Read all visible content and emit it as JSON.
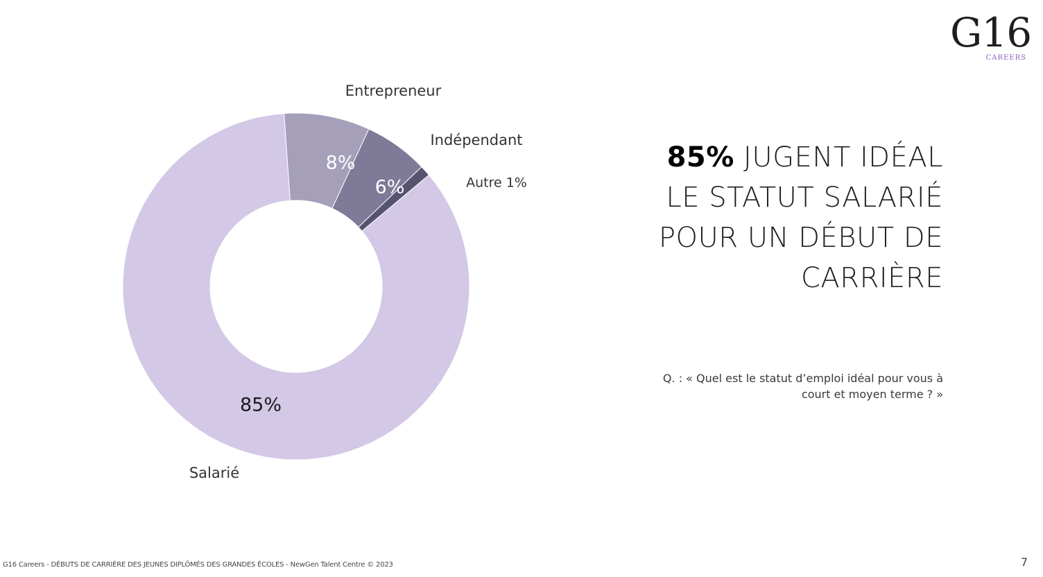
{
  "logo": {
    "main": "G16",
    "sub": "CAREERS"
  },
  "headline": {
    "bold_part": "85%",
    "line1_rest": " JUGENT IDÉAL",
    "line2": "LE STATUT SALARIÉ",
    "line3": "POUR UN DÉBUT DE",
    "line4": "CARRIÈRE"
  },
  "question": {
    "line1": "Q. : « Quel est le statut d’emploi idéal pour vous à",
    "line2": "court et moyen terme ? »"
  },
  "footer": {
    "text": "G16 Careers - DÉBUTS DE CARRIÈRE DES JEUNES DIPLÔMÉS DES GRANDES ÉCOLES - NewGen Talent Centre © 2023"
  },
  "page_number": "7",
  "chart_data": {
    "type": "pie",
    "donut": true,
    "slices": [
      {
        "label": "Salarié",
        "value": 85,
        "value_label": "85%",
        "color": "#d3c8e6",
        "text_color": "#1a1a1a"
      },
      {
        "label": "Entrepreneur",
        "value": 8,
        "value_label": "8%",
        "color": "#a59fba",
        "text_color": "#ffffff"
      },
      {
        "label": "Indépendant",
        "value": 6,
        "value_label": "6%",
        "color": "#7e7a97",
        "text_color": "#ffffff"
      },
      {
        "label": "Autre 1%",
        "value": 1,
        "value_label": "",
        "color": "#555370",
        "text_color": "#ffffff"
      }
    ]
  }
}
